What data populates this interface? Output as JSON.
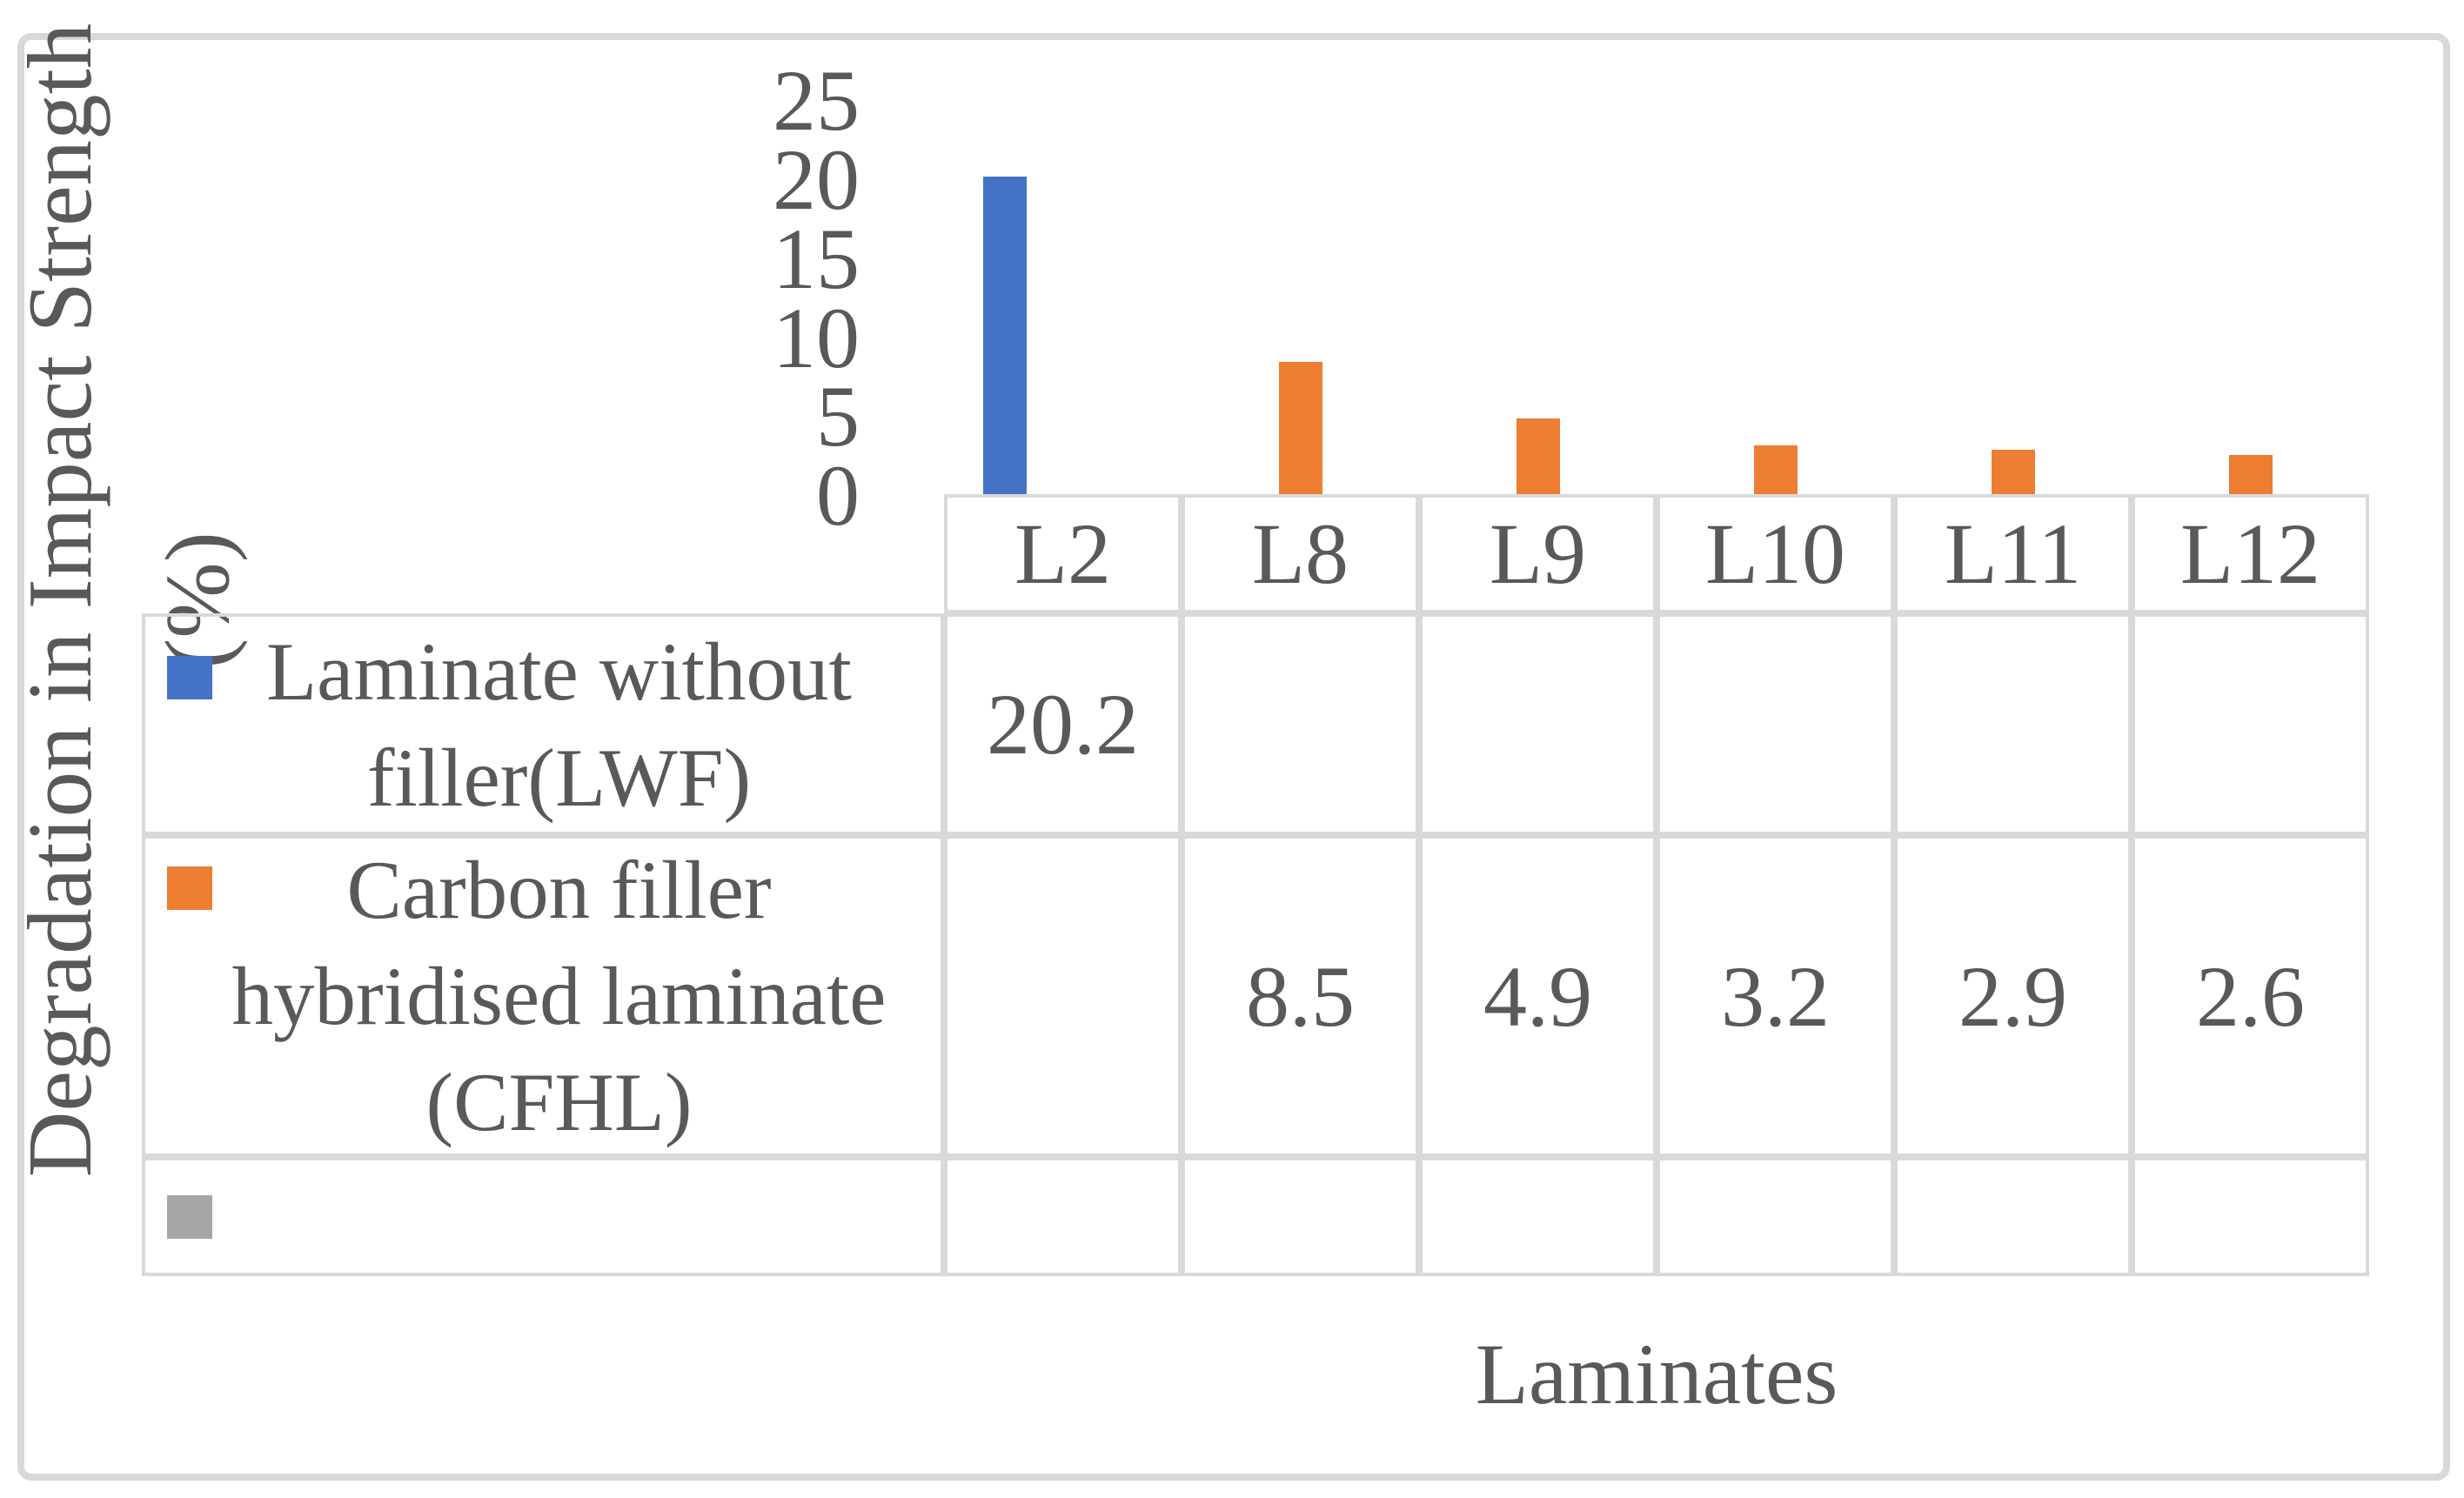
{
  "chart_data": {
    "type": "bar",
    "title": "",
    "xlabel": "Laminates",
    "ylabel": "Degradation in Impact Strength (%)",
    "ylabel_lines": [
      "Degradation in Impact Strength",
      "(%)"
    ],
    "categories": [
      "L2",
      "L8",
      "L9",
      "L10",
      "L11",
      "L12"
    ],
    "yticks": [
      25,
      20,
      15,
      10,
      5,
      0
    ],
    "ylim": [
      0,
      25
    ],
    "grid": false,
    "legend_position": "left-table",
    "has_data_table": true,
    "series": [
      {
        "name": "Laminate without filler(LWF)",
        "name_lines": [
          "Laminate without",
          "filler(LWF)"
        ],
        "color": "#4472C4",
        "values": [
          20.2,
          null,
          null,
          null,
          null,
          null
        ]
      },
      {
        "name": "Carbon filler hybridised laminate (CFHL)",
        "name_lines": [
          "Carbon filler",
          "hybridised laminate",
          "(CFHL)"
        ],
        "color": "#ED7D31",
        "values": [
          null,
          8.5,
          4.9,
          3.2,
          2.9,
          2.6
        ]
      },
      {
        "name": "",
        "name_lines": [],
        "color": "#A6A6A6",
        "values": [
          null,
          null,
          null,
          null,
          null,
          null
        ]
      }
    ],
    "colors": {
      "text": "#595959",
      "gridline": "#D9D9D9",
      "figure_border": "#D8D8D8"
    }
  }
}
